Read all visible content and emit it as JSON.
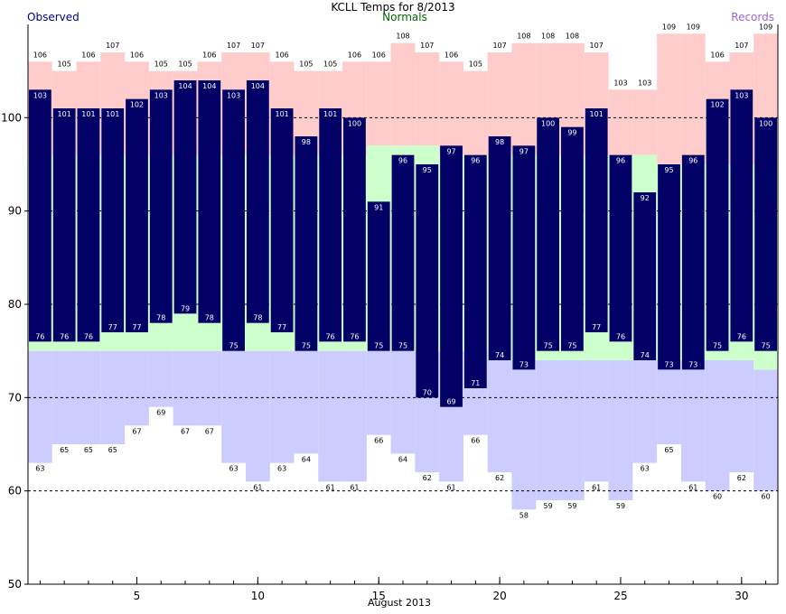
{
  "chart_data": {
    "type": "bar",
    "title": "KCLL Temps for 8/2013",
    "legend": {
      "observed": "Observed",
      "normals": "Normals",
      "records": "Records",
      "placement": "top"
    },
    "xlabel": "August 2013",
    "ylabel": "",
    "x_ticks": [
      "5",
      "10",
      "15",
      "20",
      "25",
      "30"
    ],
    "y_ticks": [
      "50",
      "60",
      "70",
      "80",
      "90",
      "100"
    ],
    "ylim": [
      50,
      110
    ],
    "xlim": [
      0.5,
      31.5
    ],
    "grid": "dashed at 60, 70, 80, 90, 100",
    "days": [
      1,
      2,
      3,
      4,
      5,
      6,
      7,
      8,
      9,
      10,
      11,
      12,
      13,
      14,
      15,
      16,
      17,
      18,
      19,
      20,
      21,
      22,
      23,
      24,
      25,
      26,
      27,
      28,
      29,
      30,
      31
    ],
    "series": [
      {
        "name": "Observed",
        "key": "obs_high",
        "values": [
          103,
          101,
          101,
          101,
          102,
          103,
          104,
          104,
          103,
          104,
          101,
          98,
          101,
          100,
          91,
          96,
          95,
          97,
          96,
          98,
          97,
          100,
          99,
          101,
          96,
          92,
          95,
          96,
          102,
          103,
          100
        ]
      },
      {
        "name": "Observed",
        "key": "obs_low",
        "values": [
          76,
          76,
          76,
          77,
          77,
          78,
          79,
          78,
          75,
          78,
          77,
          75,
          76,
          76,
          75,
          75,
          70,
          69,
          71,
          74,
          73,
          75,
          75,
          77,
          76,
          74,
          73,
          73,
          75,
          76,
          75
        ]
      },
      {
        "name": "Records",
        "key": "record_high",
        "values": [
          106,
          105,
          106,
          107,
          106,
          105,
          105,
          106,
          107,
          107,
          106,
          105,
          105,
          106,
          106,
          108,
          107,
          106,
          105,
          107,
          108,
          108,
          108,
          107,
          103,
          103,
          109,
          109,
          106,
          107,
          109
        ]
      },
      {
        "name": "Records",
        "key": "record_low",
        "values": [
          63,
          65,
          65,
          65,
          67,
          69,
          67,
          67,
          63,
          61,
          63,
          64,
          61,
          61,
          66,
          64,
          62,
          61,
          66,
          62,
          58,
          59,
          59,
          61,
          59,
          63,
          65,
          61,
          60,
          62,
          60
        ]
      },
      {
        "name": "Normals",
        "key": "normal_high",
        "values": [
          96,
          96,
          96,
          96,
          96,
          96,
          96,
          96,
          96,
          96,
          96,
          96,
          96,
          96,
          97,
          97,
          97,
          96,
          96,
          96,
          96,
          96,
          96,
          96,
          96,
          96,
          95,
          95,
          95,
          95,
          95
        ]
      },
      {
        "name": "Normals",
        "key": "normal_low",
        "values": [
          75,
          75,
          75,
          75,
          75,
          75,
          75,
          75,
          75,
          75,
          75,
          75,
          75,
          75,
          75,
          75,
          75,
          75,
          75,
          74,
          74,
          74,
          74,
          74,
          74,
          74,
          74,
          74,
          74,
          74,
          73
        ]
      }
    ],
    "colors": {
      "observed": "#000066",
      "observed_label": "#000080",
      "normals": "#ccffcc",
      "normals_label": "#006600",
      "record_high": "#ffcccc",
      "record_low": "#ccccff",
      "records_label": "#9966cc",
      "bar_value_text": "#ffffff",
      "grid": "#000000"
    }
  }
}
